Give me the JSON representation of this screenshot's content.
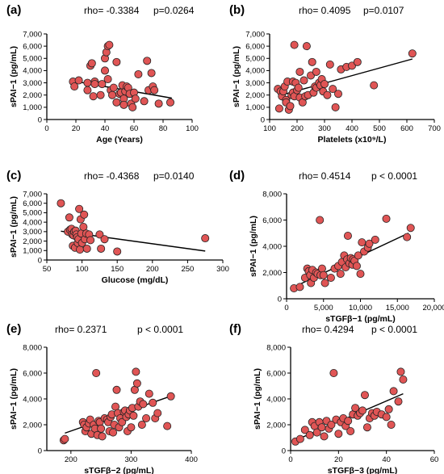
{
  "chart_data": [
    {
      "type": "scatter",
      "panel_label": "(a)",
      "stats": {
        "rho": "rho= -0.3384",
        "p": "p=0.0264"
      },
      "xlabel": "Age (Years)",
      "ylabel": "sPAI−1 (pg/mL)",
      "xlim": [
        0,
        100
      ],
      "ylim": [
        0,
        7000
      ],
      "xticks": [
        "0",
        "20",
        "40",
        "60",
        "80",
        "100"
      ],
      "yticks": [
        "0",
        "1,000",
        "2,000",
        "3,000",
        "4,000",
        "5,000",
        "6,000",
        "7,000"
      ],
      "xtick_values": [
        0,
        20,
        40,
        60,
        80,
        100
      ],
      "ytick_values": [
        0,
        1000,
        2000,
        3000,
        4000,
        5000,
        6000,
        7000
      ],
      "trend": [
        [
          18,
          3150
        ],
        [
          86,
          1750
        ]
      ],
      "points": [
        [
          18,
          3100
        ],
        [
          19,
          2700
        ],
        [
          22,
          3200
        ],
        [
          28,
          3000
        ],
        [
          28,
          2400
        ],
        [
          30,
          4400
        ],
        [
          31,
          4600
        ],
        [
          32,
          1900
        ],
        [
          33,
          3100
        ],
        [
          33,
          2900
        ],
        [
          37,
          2000
        ],
        [
          38,
          2900
        ],
        [
          40,
          4000
        ],
        [
          40,
          5000
        ],
        [
          41,
          5500
        ],
        [
          42,
          6000
        ],
        [
          43,
          6100
        ],
        [
          42,
          3300
        ],
        [
          44,
          2400
        ],
        [
          45,
          2000
        ],
        [
          46,
          2600
        ],
        [
          48,
          4700
        ],
        [
          48,
          1400
        ],
        [
          50,
          2100
        ],
        [
          51,
          2200
        ],
        [
          52,
          2800
        ],
        [
          53,
          1700
        ],
        [
          53,
          1200
        ],
        [
          54,
          2300
        ],
        [
          55,
          2700
        ],
        [
          56,
          2600
        ],
        [
          57,
          2100
        ],
        [
          58,
          1300
        ],
        [
          59,
          1000
        ],
        [
          60,
          2200
        ],
        [
          61,
          1700
        ],
        [
          63,
          3700
        ],
        [
          67,
          1500
        ],
        [
          69,
          4800
        ],
        [
          70,
          2400
        ],
        [
          72,
          3800
        ],
        [
          73,
          2700
        ],
        [
          74,
          2400
        ],
        [
          77,
          1300
        ],
        [
          85,
          1400
        ]
      ]
    },
    {
      "type": "scatter",
      "panel_label": "(b)",
      "stats": {
        "rho": "rho= 0.4095",
        "p": "p=0.0107"
      },
      "xlabel": "Platelets (x10⁹/L)",
      "ylabel": "sPAI−1 (pg/mL)",
      "xlim": [
        100,
        700
      ],
      "ylim": [
        0,
        7000
      ],
      "xticks": [
        "100",
        "200",
        "300",
        "400",
        "500",
        "600",
        "700"
      ],
      "yticks": [
        "0",
        "1,000",
        "2,000",
        "3,000",
        "4,000",
        "5,000",
        "6,000",
        "7,000"
      ],
      "xtick_values": [
        100,
        200,
        300,
        400,
        500,
        600,
        700
      ],
      "ytick_values": [
        0,
        1000,
        2000,
        3000,
        4000,
        5000,
        6000,
        7000
      ],
      "trend": [
        [
          135,
          1950
        ],
        [
          620,
          4950
        ]
      ],
      "points": [
        [
          130,
          2500
        ],
        [
          135,
          900
        ],
        [
          140,
          2300
        ],
        [
          145,
          1900
        ],
        [
          150,
          2300
        ],
        [
          155,
          2700
        ],
        [
          160,
          1600
        ],
        [
          160,
          1400
        ],
        [
          165,
          3100
        ],
        [
          170,
          800
        ],
        [
          175,
          1100
        ],
        [
          180,
          2000
        ],
        [
          185,
          3100
        ],
        [
          185,
          2200
        ],
        [
          190,
          1900
        ],
        [
          190,
          6100
        ],
        [
          195,
          3000
        ],
        [
          200,
          2400
        ],
        [
          205,
          2600
        ],
        [
          210,
          1800
        ],
        [
          210,
          3900
        ],
        [
          220,
          1400
        ],
        [
          225,
          3200
        ],
        [
          230,
          1900
        ],
        [
          235,
          6000
        ],
        [
          240,
          2000
        ],
        [
          250,
          3600
        ],
        [
          255,
          4700
        ],
        [
          260,
          2200
        ],
        [
          265,
          2700
        ],
        [
          270,
          2600
        ],
        [
          270,
          3900
        ],
        [
          280,
          3000
        ],
        [
          285,
          2800
        ],
        [
          290,
          3300
        ],
        [
          295,
          2300
        ],
        [
          300,
          2900
        ],
        [
          310,
          2000
        ],
        [
          320,
          4500
        ],
        [
          330,
          2500
        ],
        [
          340,
          1000
        ],
        [
          350,
          2100
        ],
        [
          360,
          4100
        ],
        [
          380,
          4300
        ],
        [
          400,
          4400
        ],
        [
          420,
          4700
        ],
        [
          480,
          2800
        ],
        [
          620,
          5400
        ]
      ]
    },
    {
      "type": "scatter",
      "panel_label": "(c)",
      "stats": {
        "rho": "rho= -0.4368",
        "p": "p=0.0140"
      },
      "xlabel": "Glucose (mg/dL)",
      "ylabel": "sPAI−1 (pg/mL)",
      "xlim": [
        50,
        300
      ],
      "ylim": [
        0,
        7000
      ],
      "xticks": [
        "50",
        "100",
        "150",
        "200",
        "250",
        "300"
      ],
      "yticks": [
        "0",
        "1,000",
        "2,000",
        "3,000",
        "4,000",
        "5,000",
        "6,000",
        "7,000"
      ],
      "xtick_values": [
        50,
        100,
        150,
        200,
        250,
        300
      ],
      "ytick_values": [
        0,
        1000,
        2000,
        3000,
        4000,
        5000,
        6000,
        7000
      ],
      "trend": [
        [
          70,
          3050
        ],
        [
          275,
          950
        ]
      ],
      "points": [
        [
          70,
          6000
        ],
        [
          80,
          3000
        ],
        [
          82,
          4500
        ],
        [
          83,
          3200
        ],
        [
          85,
          3300
        ],
        [
          86,
          2700
        ],
        [
          87,
          1500
        ],
        [
          88,
          2600
        ],
        [
          89,
          3000
        ],
        [
          90,
          1300
        ],
        [
          91,
          3100
        ],
        [
          92,
          2700
        ],
        [
          93,
          2400
        ],
        [
          94,
          1800
        ],
        [
          95,
          2200
        ],
        [
          96,
          5400
        ],
        [
          97,
          1100
        ],
        [
          98,
          4300
        ],
        [
          99,
          2800
        ],
        [
          100,
          1800
        ],
        [
          102,
          3500
        ],
        [
          103,
          4800
        ],
        [
          104,
          2200
        ],
        [
          106,
          2800
        ],
        [
          107,
          1200
        ],
        [
          110,
          2700
        ],
        [
          112,
          2100
        ],
        [
          125,
          2700
        ],
        [
          127,
          1200
        ],
        [
          132,
          2200
        ],
        [
          150,
          900
        ],
        [
          275,
          2300
        ]
      ]
    },
    {
      "type": "scatter",
      "panel_label": "(d)",
      "stats": {
        "rho": "rho= 0.4514",
        "p": "p < 0.0001"
      },
      "xlabel": "sTGFβ−1 (pg/mL)",
      "ylabel": "sPAI−1 (pg/mL)",
      "xlim": [
        0,
        20000
      ],
      "ylim": [
        0,
        8000
      ],
      "xticks": [
        "0",
        "5,000",
        "10,000",
        "15,000",
        "20,000"
      ],
      "yticks": [
        "0",
        "2,000",
        "4,000",
        "6,000",
        "8,000"
      ],
      "xtick_values": [
        0,
        5000,
        10000,
        15000,
        20000
      ],
      "ytick_values": [
        0,
        2000,
        4000,
        6000,
        8000
      ],
      "trend": [
        [
          1000,
          900
        ],
        [
          16500,
          5000
        ]
      ],
      "points": [
        [
          1000,
          800
        ],
        [
          1800,
          900
        ],
        [
          2500,
          1600
        ],
        [
          2800,
          2300
        ],
        [
          3000,
          2100
        ],
        [
          3200,
          1800
        ],
        [
          3300,
          1200
        ],
        [
          3500,
          2200
        ],
        [
          3700,
          1600
        ],
        [
          4000,
          2000
        ],
        [
          4200,
          1900
        ],
        [
          4500,
          6000
        ],
        [
          4600,
          1800
        ],
        [
          4800,
          2300
        ],
        [
          5000,
          1800
        ],
        [
          5200,
          1200
        ],
        [
          6000,
          1600
        ],
        [
          6500,
          2300
        ],
        [
          7000,
          2500
        ],
        [
          7300,
          1900
        ],
        [
          7500,
          2800
        ],
        [
          7800,
          3300
        ],
        [
          8000,
          2400
        ],
        [
          8200,
          3000
        ],
        [
          8300,
          4800
        ],
        [
          8500,
          2700
        ],
        [
          8700,
          3100
        ],
        [
          8900,
          2600
        ],
        [
          9000,
          3000
        ],
        [
          9200,
          2900
        ],
        [
          9500,
          2500
        ],
        [
          9700,
          3300
        ],
        [
          10000,
          1900
        ],
        [
          10200,
          4300
        ],
        [
          10500,
          3600
        ],
        [
          11000,
          3900
        ],
        [
          11200,
          4200
        ],
        [
          12000,
          4500
        ],
        [
          13500,
          6100
        ],
        [
          16300,
          4700
        ],
        [
          16800,
          5400
        ]
      ]
    },
    {
      "type": "scatter",
      "panel_label": "(e)",
      "stats": {
        "rho": "rho= 0.2371",
        "p": "p < 0.0001"
      },
      "xlabel": "sTGFβ−2 (pg/mL)",
      "ylabel": "sPAI−1 (pg/mL)",
      "xlim": [
        160,
        400
      ],
      "ylim": [
        0,
        8000
      ],
      "xticks": [
        "200",
        "300",
        "400"
      ],
      "yticks": [
        "0",
        "2,000",
        "4,000",
        "6,000",
        "8,000"
      ],
      "xtick_values": [
        200,
        300,
        400
      ],
      "ytick_values": [
        0,
        2000,
        4000,
        6000,
        8000
      ],
      "trend": [
        [
          190,
          1350
        ],
        [
          365,
          4200
        ]
      ],
      "points": [
        [
          188,
          800
        ],
        [
          190,
          900
        ],
        [
          220,
          2200
        ],
        [
          222,
          2000
        ],
        [
          224,
          1500
        ],
        [
          226,
          1800
        ],
        [
          230,
          2100
        ],
        [
          232,
          2400
        ],
        [
          234,
          1300
        ],
        [
          238,
          2000
        ],
        [
          240,
          1700
        ],
        [
          242,
          6000
        ],
        [
          244,
          1200
        ],
        [
          246,
          2300
        ],
        [
          248,
          2200
        ],
        [
          250,
          1700
        ],
        [
          252,
          1100
        ],
        [
          256,
          2500
        ],
        [
          260,
          2400
        ],
        [
          262,
          2200
        ],
        [
          264,
          1500
        ],
        [
          266,
          2600
        ],
        [
          268,
          2800
        ],
        [
          270,
          1400
        ],
        [
          272,
          2000
        ],
        [
          274,
          3400
        ],
        [
          276,
          4700
        ],
        [
          278,
          2900
        ],
        [
          280,
          1800
        ],
        [
          282,
          2500
        ],
        [
          285,
          2200
        ],
        [
          288,
          3000
        ],
        [
          290,
          3100
        ],
        [
          292,
          2600
        ],
        [
          294,
          1500
        ],
        [
          296,
          2800
        ],
        [
          298,
          3100
        ],
        [
          300,
          1800
        ],
        [
          302,
          3300
        ],
        [
          304,
          2700
        ],
        [
          306,
          4700
        ],
        [
          308,
          6100
        ],
        [
          310,
          5200
        ],
        [
          312,
          3400
        ],
        [
          315,
          3800
        ],
        [
          318,
          2000
        ],
        [
          320,
          3600
        ],
        [
          325,
          2500
        ],
        [
          330,
          4400
        ],
        [
          336,
          3700
        ],
        [
          340,
          2500
        ],
        [
          344,
          2900
        ],
        [
          360,
          1900
        ],
        [
          366,
          4200
        ]
      ]
    },
    {
      "type": "scatter",
      "panel_label": "(f)",
      "stats": {
        "rho": "rho= 0.4294",
        "p": "p < 0.0001"
      },
      "xlabel": "sTGFβ−3 (pg/mL)",
      "ylabel": "sPAI−1 (pg/mL)",
      "xlim": [
        0,
        60
      ],
      "ylim": [
        0,
        8000
      ],
      "xticks": [
        "0",
        "20",
        "40",
        "60"
      ],
      "yticks": [
        "0",
        "2,000",
        "4,000",
        "6,000",
        "8,000"
      ],
      "xtick_values": [
        0,
        20,
        40,
        60
      ],
      "ytick_values": [
        0,
        2000,
        4000,
        6000,
        8000
      ],
      "trend": [
        [
          2,
          800
        ],
        [
          47,
          4400
        ]
      ],
      "points": [
        [
          2,
          700
        ],
        [
          4,
          900
        ],
        [
          6,
          1600
        ],
        [
          8,
          1200
        ],
        [
          9,
          2200
        ],
        [
          10,
          1900
        ],
        [
          11,
          1400
        ],
        [
          12,
          2200
        ],
        [
          13,
          1800
        ],
        [
          14,
          1100
        ],
        [
          15,
          2300
        ],
        [
          16,
          1700
        ],
        [
          17,
          2000
        ],
        [
          18,
          6000
        ],
        [
          19,
          2400
        ],
        [
          20,
          1300
        ],
        [
          21,
          2200
        ],
        [
          22,
          2500
        ],
        [
          23,
          1900
        ],
        [
          24,
          2300
        ],
        [
          25,
          1500
        ],
        [
          26,
          2800
        ],
        [
          27,
          3300
        ],
        [
          28,
          2700
        ],
        [
          29,
          2900
        ],
        [
          30,
          3100
        ],
        [
          31,
          4300
        ],
        [
          32,
          1800
        ],
        [
          33,
          2500
        ],
        [
          34,
          2900
        ],
        [
          35,
          2700
        ],
        [
          36,
          3000
        ],
        [
          38,
          2800
        ],
        [
          40,
          2600
        ],
        [
          41,
          3200
        ],
        [
          42,
          2000
        ],
        [
          43,
          4600
        ],
        [
          45,
          3800
        ],
        [
          46,
          6100
        ],
        [
          47,
          5500
        ]
      ]
    }
  ]
}
